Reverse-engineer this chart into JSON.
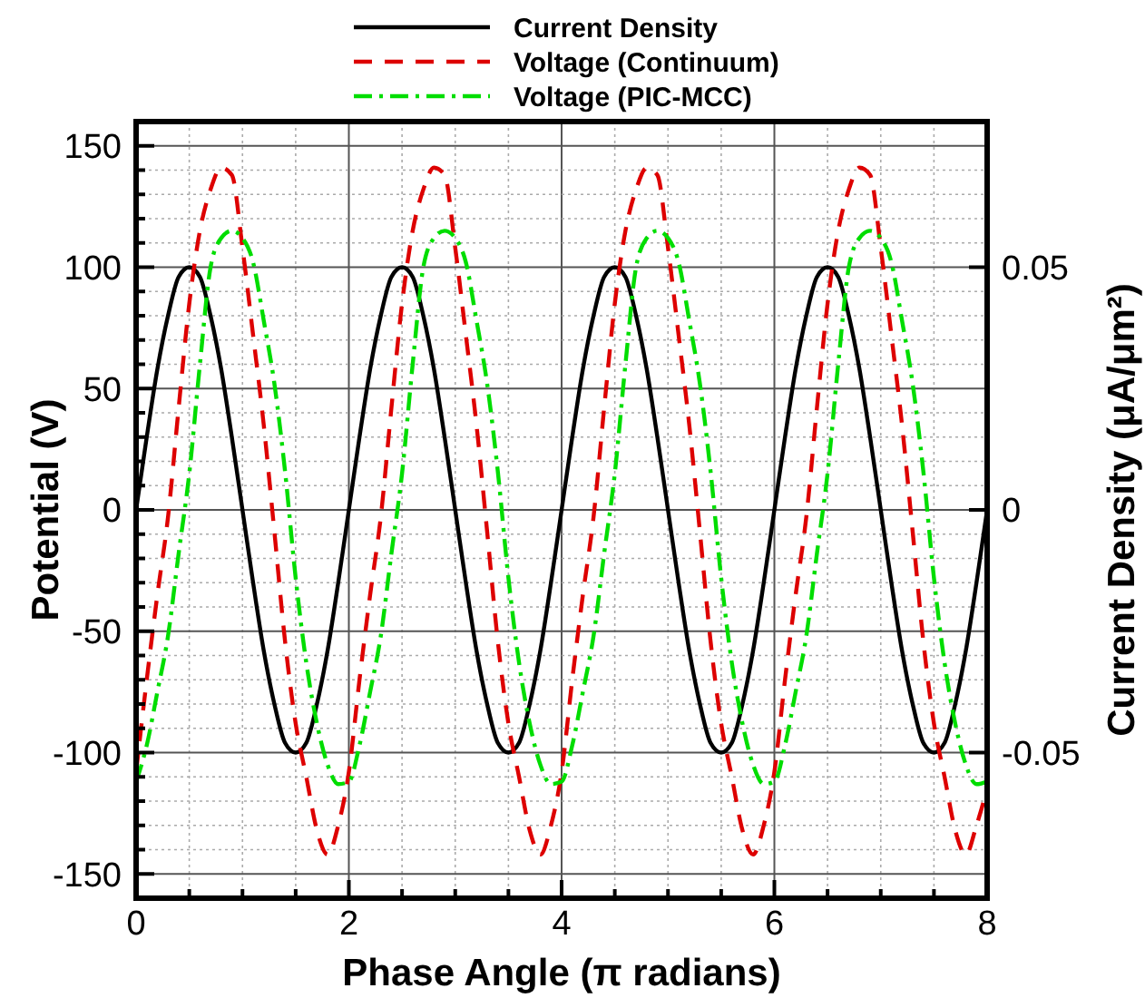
{
  "chart_data": {
    "type": "line",
    "xlabel": "Phase Angle (π radians)",
    "ylabel": "Potential (V)",
    "y2label": "Current Density (μA/μm²)",
    "x": [
      0,
      0.1,
      0.2,
      0.3,
      0.4,
      0.5,
      0.6,
      0.7,
      0.8,
      0.9,
      1,
      1.1,
      1.2,
      1.3,
      1.4,
      1.5,
      1.6,
      1.7,
      1.8,
      1.9,
      2,
      2.1,
      2.2,
      2.3,
      2.4,
      2.5,
      2.6,
      2.7,
      2.8,
      2.9,
      3,
      3.1,
      3.2,
      3.3,
      3.4,
      3.5,
      3.6,
      3.7,
      3.8,
      3.9,
      4,
      4.1,
      4.2,
      4.3,
      4.4,
      4.5,
      4.6,
      4.7,
      4.8,
      4.9,
      5,
      5.1,
      5.2,
      5.3,
      5.4,
      5.5,
      5.6,
      5.7,
      5.8,
      5.9,
      6,
      6.1,
      6.2,
      6.3,
      6.4,
      6.5,
      6.6,
      6.7,
      6.8,
      6.9,
      7,
      7.1,
      7.2,
      7.3,
      7.4,
      7.5,
      7.6,
      7.7,
      7.8,
      7.9,
      8
    ],
    "series": [
      {
        "name": "Current Density",
        "color": "#000000",
        "line_style": "solid",
        "axis": "y2",
        "values": [
          0,
          0.015,
          0.029,
          0.04,
          0.048,
          0.05,
          0.048,
          0.04,
          0.029,
          0.015,
          0,
          -0.015,
          -0.029,
          -0.04,
          -0.048,
          -0.05,
          -0.048,
          -0.04,
          -0.029,
          -0.015,
          0,
          0.015,
          0.029,
          0.04,
          0.048,
          0.05,
          0.048,
          0.04,
          0.029,
          0.015,
          0,
          -0.015,
          -0.029,
          -0.04,
          -0.048,
          -0.05,
          -0.048,
          -0.04,
          -0.029,
          -0.015,
          0,
          0.015,
          0.029,
          0.04,
          0.048,
          0.05,
          0.048,
          0.04,
          0.029,
          0.015,
          0,
          -0.015,
          -0.029,
          -0.04,
          -0.048,
          -0.05,
          -0.048,
          -0.04,
          -0.029,
          -0.015,
          0,
          0.015,
          0.029,
          0.04,
          0.048,
          0.05,
          0.048,
          0.04,
          0.029,
          0.015,
          0,
          -0.015,
          -0.029,
          -0.04,
          -0.048,
          -0.05,
          -0.048,
          -0.04,
          -0.029,
          -0.015,
          0
        ]
      },
      {
        "name": "Voltage (Continuum)",
        "color": "#dd0000",
        "line_style": "dashed",
        "values": [
          -108,
          -70,
          -35,
          -3,
          42,
          85,
          115,
          132,
          141,
          138,
          108,
          72,
          35,
          -9,
          -54,
          -88,
          -110,
          -132,
          -142,
          -130,
          -108,
          -70,
          -35,
          -3,
          42,
          85,
          115,
          132,
          141,
          138,
          108,
          72,
          35,
          -9,
          -54,
          -88,
          -110,
          -132,
          -142,
          -130,
          -108,
          -70,
          -35,
          -3,
          42,
          85,
          115,
          132,
          141,
          138,
          108,
          72,
          35,
          -9,
          -54,
          -88,
          -110,
          -132,
          -142,
          -130,
          -108,
          -70,
          -35,
          -3,
          42,
          85,
          115,
          132,
          141,
          138,
          108,
          72,
          35,
          -9,
          -54,
          -88,
          -110,
          -132,
          -142,
          -130,
          -115
        ]
      },
      {
        "name": "Voltage (PIC-MCC)",
        "color": "#00dd00",
        "line_style": "dashdot",
        "values": [
          -112,
          -97,
          -75,
          -52,
          -18,
          15,
          60,
          100,
          112,
          115,
          112,
          102,
          78,
          52,
          16,
          -28,
          -63,
          -88,
          -105,
          -113,
          -112,
          -97,
          -75,
          -52,
          -18,
          15,
          60,
          100,
          112,
          115,
          112,
          102,
          78,
          52,
          16,
          -28,
          -63,
          -88,
          -105,
          -113,
          -112,
          -97,
          -75,
          -52,
          -18,
          15,
          60,
          100,
          112,
          115,
          112,
          102,
          78,
          52,
          16,
          -28,
          -63,
          -88,
          -105,
          -113,
          -112,
          -97,
          -75,
          -52,
          -18,
          15,
          60,
          100,
          112,
          115,
          112,
          102,
          78,
          52,
          16,
          -28,
          -63,
          -88,
          -105,
          -113,
          -112
        ]
      }
    ],
    "xlim": [
      0,
      8
    ],
    "ylim": [
      -160,
      160
    ],
    "y2lim": [
      -0.08,
      0.08
    ],
    "xticks": [
      0,
      {
        "value": 0.5,
        "label": null
      },
      {
        "value": 1,
        "label": null
      },
      {
        "value": 1.5,
        "label": null
      },
      2,
      {
        "value": 2.5,
        "label": null
      },
      {
        "value": 3,
        "label": null
      },
      {
        "value": 3.5,
        "label": null
      },
      4,
      {
        "value": 4.5,
        "label": null
      },
      {
        "value": 5,
        "label": null
      },
      {
        "value": 5.5,
        "label": null
      },
      6,
      {
        "value": 6.5,
        "label": null
      },
      {
        "value": 7,
        "label": null
      },
      {
        "value": 7.5,
        "label": null
      },
      8
    ],
    "yticks": [
      -150,
      {
        "value": -140,
        "label": null
      },
      {
        "value": -130,
        "label": null
      },
      {
        "value": -120,
        "label": null
      },
      {
        "value": -110,
        "label": null
      },
      -100,
      {
        "value": -90,
        "label": null
      },
      {
        "value": -80,
        "label": null
      },
      {
        "value": -70,
        "label": null
      },
      {
        "value": -60,
        "label": null
      },
      -50,
      {
        "value": -40,
        "label": null
      },
      {
        "value": -30,
        "label": null
      },
      {
        "value": -20,
        "label": null
      },
      {
        "value": -10,
        "label": null
      },
      0,
      {
        "value": 10,
        "label": null
      },
      {
        "value": 20,
        "label": null
      },
      {
        "value": 30,
        "label": null
      },
      {
        "value": 40,
        "label": null
      },
      50,
      {
        "value": 60,
        "label": null
      },
      {
        "value": 70,
        "label": null
      },
      {
        "value": 80,
        "label": null
      },
      {
        "value": 90,
        "label": null
      },
      100,
      {
        "value": 110,
        "label": null
      },
      {
        "value": 120,
        "label": null
      },
      {
        "value": 130,
        "label": null
      },
      {
        "value": 140,
        "label": null
      },
      150
    ],
    "y2ticks": [
      -0.05,
      0,
      0.05
    ],
    "grid": true,
    "legend": "top"
  }
}
